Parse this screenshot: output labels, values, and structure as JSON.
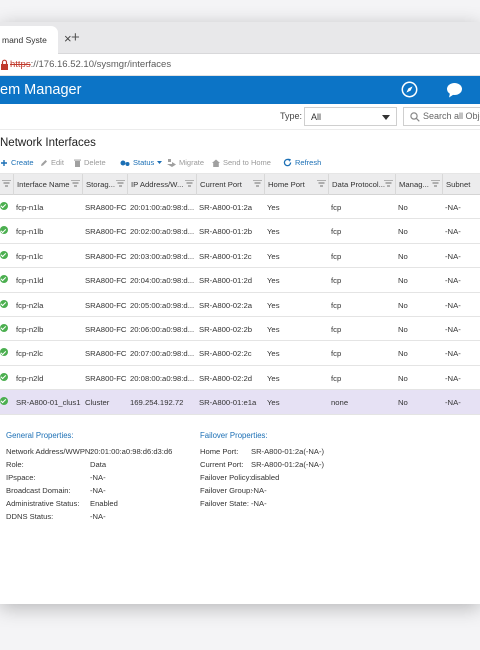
{
  "browser": {
    "tab_title": "mand Syste",
    "url_scheme": "https",
    "url_rest": "://176.16.52.10/sysmgr/interfaces"
  },
  "app": {
    "title": "em Manager",
    "icons": [
      "compass-icon",
      "chat-icon"
    ],
    "header_color": "#0c74c6"
  },
  "filter": {
    "type_label": "Type:",
    "type_value": "All",
    "search_placeholder": "Search all Objec"
  },
  "section_title": "Network Interfaces",
  "toolbar": {
    "create": "Create",
    "edit": "Edit",
    "delete": "Delete",
    "status": "Status",
    "migrate": "Migrate",
    "send_to_home": "Send to Home",
    "refresh": "Refresh"
  },
  "table": {
    "columns": [
      "Interface Name",
      "Storag...",
      "IP Address/W...",
      "Current Port",
      "Home Port",
      "Data Protocol...",
      "Manag...",
      "Subnet"
    ],
    "rows": [
      [
        "fcp-n1la",
        "SRA800-FCP",
        "20:01:00:a0:98:d...",
        "SR-A800-01:2a",
        "Yes",
        "fcp",
        "No",
        "-NA-"
      ],
      [
        "fcp-n1lb",
        "SRA800-FCP",
        "20:02:00:a0:98:d...",
        "SR-A800-01:2b",
        "Yes",
        "fcp",
        "No",
        "-NA-"
      ],
      [
        "fcp-n1lc",
        "SRA800-FCP",
        "20:03:00:a0:98:d...",
        "SR-A800-01:2c",
        "Yes",
        "fcp",
        "No",
        "-NA-"
      ],
      [
        "fcp-n1ld",
        "SRA800-FCP",
        "20:04:00:a0:98:d...",
        "SR-A800-01:2d",
        "Yes",
        "fcp",
        "No",
        "-NA-"
      ],
      [
        "fcp-n2la",
        "SRA800-FCP",
        "20:05:00:a0:98:d...",
        "SR-A800-02:2a",
        "Yes",
        "fcp",
        "No",
        "-NA-"
      ],
      [
        "fcp-n2lb",
        "SRA800-FCP",
        "20:06:00:a0:98:d...",
        "SR-A800-02:2b",
        "Yes",
        "fcp",
        "No",
        "-NA-"
      ],
      [
        "fcp-n2lc",
        "SRA800-FCP",
        "20:07:00:a0:98:d...",
        "SR-A800-02:2c",
        "Yes",
        "fcp",
        "No",
        "-NA-"
      ],
      [
        "fcp-n2ld",
        "SRA800-FCP",
        "20:08:00:a0:98:d...",
        "SR-A800-02:2d",
        "Yes",
        "fcp",
        "No",
        "-NA-"
      ],
      [
        "SR-A800-01_clus1",
        "Cluster",
        "169.254.192.72",
        "SR-A800-01:e1a",
        "Yes",
        "none",
        "No",
        "-NA-"
      ]
    ],
    "selected_row": 8,
    "status_color": "#4caf50"
  },
  "details": {
    "general_title": "General Properties:",
    "general": [
      {
        "label": "Network Address/WWPN:",
        "value": "20:01:00:a0:98:d6:d3:d6"
      },
      {
        "label": "Role:",
        "value": "Data"
      },
      {
        "label": "IPspace:",
        "value": "-NA-"
      },
      {
        "label": "Broadcast Domain:",
        "value": "-NA-"
      },
      {
        "label": "Administrative Status:",
        "value": "Enabled"
      },
      {
        "label": "DDNS Status:",
        "value": "-NA-"
      }
    ],
    "failover_title": "Failover Properties:",
    "failover": [
      {
        "label": "Home Port:",
        "value": "SR-A800-01:2a(-NA-)"
      },
      {
        "label": "Current Port:",
        "value": "SR-A800-01:2a(-NA-)"
      },
      {
        "label": "Failover Policy:",
        "value": "disabled"
      },
      {
        "label": "Failover Group:",
        "value": "-NA-"
      },
      {
        "label": "Failover State:",
        "value": "-NA-"
      }
    ]
  }
}
